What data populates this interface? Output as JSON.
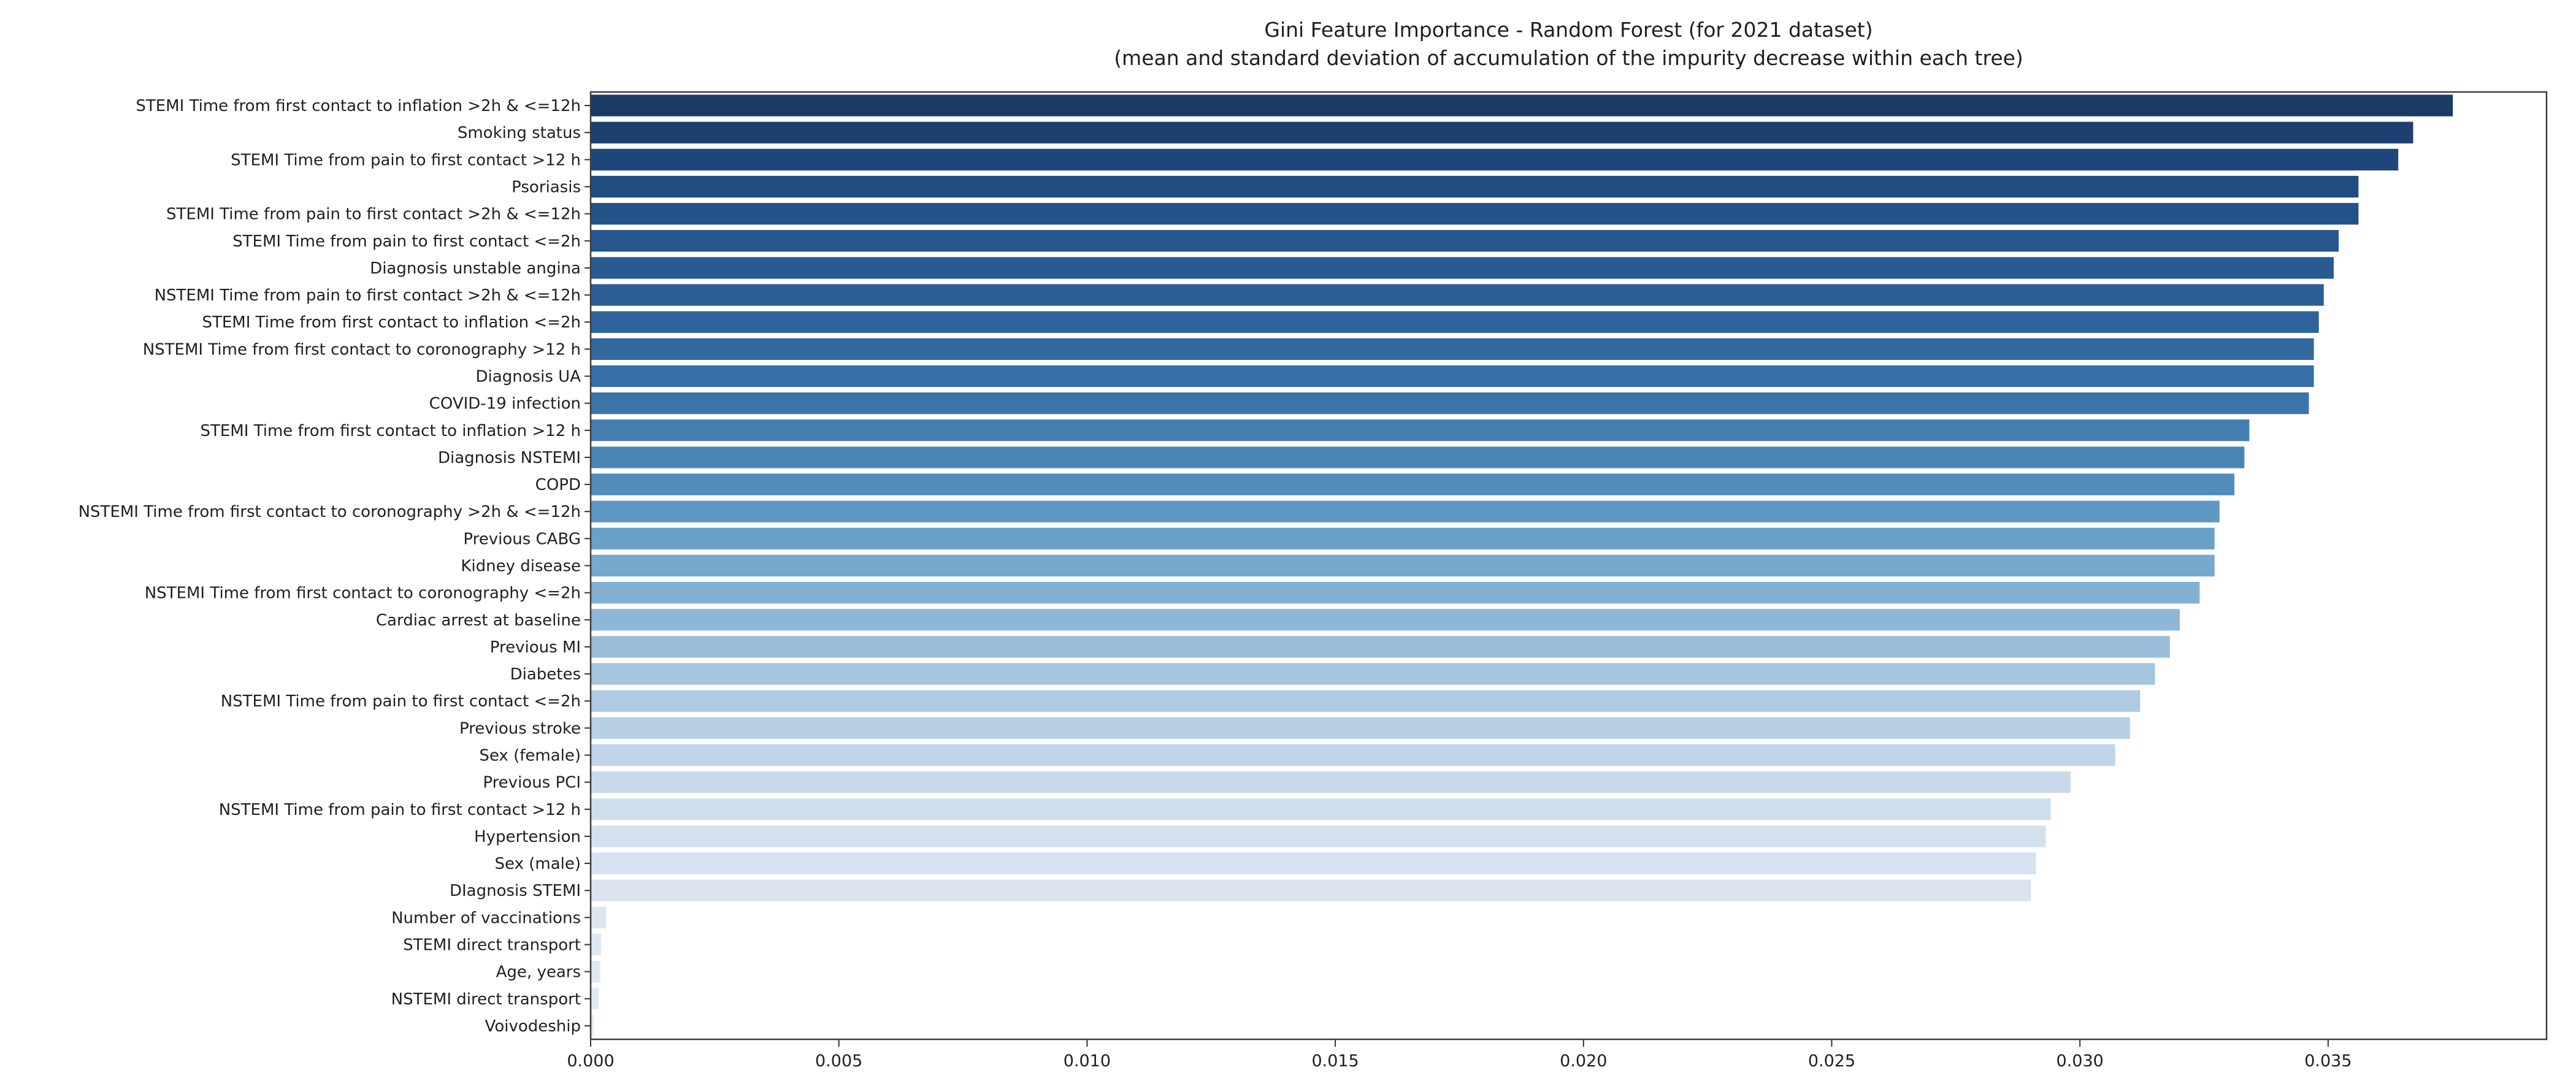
{
  "chart_data": {
    "type": "bar",
    "orientation": "horizontal",
    "title": "Gini Feature Importance - Random Forest (for 2021 dataset)",
    "subtitle": "(mean and standard deviation of accumulation of the impurity decrease within each tree)",
    "categories": [
      "STEMI Time from first contact to inflation >2h & <=12h",
      "Smoking status",
      "STEMI Time from pain to first contact >12 h",
      "Psoriasis",
      "STEMI Time from pain to first contact >2h & <=12h",
      "STEMI Time from pain to first contact <=2h",
      "Diagnosis unstable angina",
      "NSTEMI Time from pain to first contact >2h & <=12h",
      "STEMI Time from first contact to inflation <=2h",
      "NSTEMI Time from first contact to coronography >12 h",
      "Diagnosis UA",
      "COVID-19 infection",
      "STEMI Time from first contact to inflation >12 h",
      "Diagnosis NSTEMI",
      "COPD",
      "NSTEMI Time from first contact to coronography >2h & <=12h",
      "Previous CABG",
      "Kidney disease",
      "NSTEMI Time from first contact to coronography <=2h",
      "Cardiac arrest at baseline",
      "Previous MI",
      "Diabetes",
      "NSTEMI Time from pain to first contact <=2h",
      "Previous stroke",
      "Sex (female)",
      "Previous PCI",
      "NSTEMI Time from pain to first contact >12 h",
      "Hypertension",
      "Sex (male)",
      "DIagnosis STEMI",
      "Number of vaccinations",
      "STEMI direct transport",
      "Age, years",
      "NSTEMI direct transport",
      "Voivodeship"
    ],
    "values": [
      0.0375,
      0.0367,
      0.0364,
      0.0356,
      0.0356,
      0.0352,
      0.0351,
      0.0349,
      0.0348,
      0.0347,
      0.0347,
      0.0346,
      0.0334,
      0.0333,
      0.0331,
      0.0328,
      0.0327,
      0.0327,
      0.0324,
      0.032,
      0.0318,
      0.0315,
      0.0312,
      0.031,
      0.0307,
      0.0298,
      0.0294,
      0.0293,
      0.0291,
      0.029,
      0.0003,
      0.0002,
      0.00018,
      0.00015,
      5e-05
    ],
    "bar_colors": [
      "#1a3a66",
      "#1d4070",
      "#1f467a",
      "#214c82",
      "#235289",
      "#26568d",
      "#285a91",
      "#2b5f96",
      "#2e649b",
      "#31699f",
      "#366fa5",
      "#3b74a9",
      "#447eb1",
      "#4b85b6",
      "#528cba",
      "#5f98c2",
      "#6aa1c8",
      "#76a9cd",
      "#82b0d2",
      "#8eb7d7",
      "#9abed9",
      "#a5c6de",
      "#aecbe1",
      "#b7d0e4",
      "#c0d5e7",
      "#c8daea",
      "#cfdeed",
      "#d3e1ee",
      "#d6e2ef",
      "#d9e4f0",
      "#dce6f1",
      "#dee8f2",
      "#e0e9f3",
      "#e1eaf4",
      "#e3ecf5"
    ],
    "xlabel": "",
    "ylabel": "",
    "xlim": [
      0,
      0.0394
    ],
    "x_ticks": [
      0,
      0.005,
      0.01,
      0.015,
      0.02,
      0.025,
      0.03,
      0.035
    ],
    "x_tick_labels": [
      "0.000",
      "0.005",
      "0.010",
      "0.015",
      "0.020",
      "0.025",
      "0.030",
      "0.035"
    ],
    "grid": false,
    "legend": null,
    "text_color": "#1f1f1f",
    "tick_color": "#333333",
    "spine_color": "#3c3c3c",
    "background": "#ffffff"
  }
}
